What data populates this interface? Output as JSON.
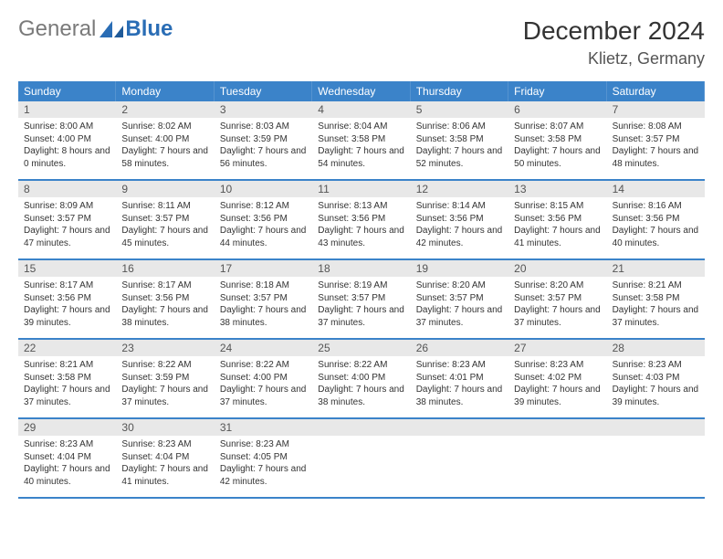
{
  "logo": {
    "part1": "General",
    "part2": "Blue"
  },
  "title": "December 2024",
  "location": "Klietz, Germany",
  "colors": {
    "header_bg": "#3b83c9",
    "header_text": "#ffffff",
    "daynum_bg": "#e8e8e8",
    "rule": "#3b83c9",
    "logo_gray": "#7a7a7a",
    "logo_blue": "#2a6db5"
  },
  "layout": {
    "columns": 7,
    "rows": 5
  },
  "days_of_week": [
    "Sunday",
    "Monday",
    "Tuesday",
    "Wednesday",
    "Thursday",
    "Friday",
    "Saturday"
  ],
  "days": [
    {
      "n": "1",
      "sunrise": "8:00 AM",
      "sunset": "4:00 PM",
      "daylight": "8 hours and 0 minutes."
    },
    {
      "n": "2",
      "sunrise": "8:02 AM",
      "sunset": "4:00 PM",
      "daylight": "7 hours and 58 minutes."
    },
    {
      "n": "3",
      "sunrise": "8:03 AM",
      "sunset": "3:59 PM",
      "daylight": "7 hours and 56 minutes."
    },
    {
      "n": "4",
      "sunrise": "8:04 AM",
      "sunset": "3:58 PM",
      "daylight": "7 hours and 54 minutes."
    },
    {
      "n": "5",
      "sunrise": "8:06 AM",
      "sunset": "3:58 PM",
      "daylight": "7 hours and 52 minutes."
    },
    {
      "n": "6",
      "sunrise": "8:07 AM",
      "sunset": "3:58 PM",
      "daylight": "7 hours and 50 minutes."
    },
    {
      "n": "7",
      "sunrise": "8:08 AM",
      "sunset": "3:57 PM",
      "daylight": "7 hours and 48 minutes."
    },
    {
      "n": "8",
      "sunrise": "8:09 AM",
      "sunset": "3:57 PM",
      "daylight": "7 hours and 47 minutes."
    },
    {
      "n": "9",
      "sunrise": "8:11 AM",
      "sunset": "3:57 PM",
      "daylight": "7 hours and 45 minutes."
    },
    {
      "n": "10",
      "sunrise": "8:12 AM",
      "sunset": "3:56 PM",
      "daylight": "7 hours and 44 minutes."
    },
    {
      "n": "11",
      "sunrise": "8:13 AM",
      "sunset": "3:56 PM",
      "daylight": "7 hours and 43 minutes."
    },
    {
      "n": "12",
      "sunrise": "8:14 AM",
      "sunset": "3:56 PM",
      "daylight": "7 hours and 42 minutes."
    },
    {
      "n": "13",
      "sunrise": "8:15 AM",
      "sunset": "3:56 PM",
      "daylight": "7 hours and 41 minutes."
    },
    {
      "n": "14",
      "sunrise": "8:16 AM",
      "sunset": "3:56 PM",
      "daylight": "7 hours and 40 minutes."
    },
    {
      "n": "15",
      "sunrise": "8:17 AM",
      "sunset": "3:56 PM",
      "daylight": "7 hours and 39 minutes."
    },
    {
      "n": "16",
      "sunrise": "8:17 AM",
      "sunset": "3:56 PM",
      "daylight": "7 hours and 38 minutes."
    },
    {
      "n": "17",
      "sunrise": "8:18 AM",
      "sunset": "3:57 PM",
      "daylight": "7 hours and 38 minutes."
    },
    {
      "n": "18",
      "sunrise": "8:19 AM",
      "sunset": "3:57 PM",
      "daylight": "7 hours and 37 minutes."
    },
    {
      "n": "19",
      "sunrise": "8:20 AM",
      "sunset": "3:57 PM",
      "daylight": "7 hours and 37 minutes."
    },
    {
      "n": "20",
      "sunrise": "8:20 AM",
      "sunset": "3:57 PM",
      "daylight": "7 hours and 37 minutes."
    },
    {
      "n": "21",
      "sunrise": "8:21 AM",
      "sunset": "3:58 PM",
      "daylight": "7 hours and 37 minutes."
    },
    {
      "n": "22",
      "sunrise": "8:21 AM",
      "sunset": "3:58 PM",
      "daylight": "7 hours and 37 minutes."
    },
    {
      "n": "23",
      "sunrise": "8:22 AM",
      "sunset": "3:59 PM",
      "daylight": "7 hours and 37 minutes."
    },
    {
      "n": "24",
      "sunrise": "8:22 AM",
      "sunset": "4:00 PM",
      "daylight": "7 hours and 37 minutes."
    },
    {
      "n": "25",
      "sunrise": "8:22 AM",
      "sunset": "4:00 PM",
      "daylight": "7 hours and 38 minutes."
    },
    {
      "n": "26",
      "sunrise": "8:23 AM",
      "sunset": "4:01 PM",
      "daylight": "7 hours and 38 minutes."
    },
    {
      "n": "27",
      "sunrise": "8:23 AM",
      "sunset": "4:02 PM",
      "daylight": "7 hours and 39 minutes."
    },
    {
      "n": "28",
      "sunrise": "8:23 AM",
      "sunset": "4:03 PM",
      "daylight": "7 hours and 39 minutes."
    },
    {
      "n": "29",
      "sunrise": "8:23 AM",
      "sunset": "4:04 PM",
      "daylight": "7 hours and 40 minutes."
    },
    {
      "n": "30",
      "sunrise": "8:23 AM",
      "sunset": "4:04 PM",
      "daylight": "7 hours and 41 minutes."
    },
    {
      "n": "31",
      "sunrise": "8:23 AM",
      "sunset": "4:05 PM",
      "daylight": "7 hours and 42 minutes."
    }
  ],
  "labels": {
    "sunrise": "Sunrise: ",
    "sunset": "Sunset: ",
    "daylight": "Daylight: "
  }
}
